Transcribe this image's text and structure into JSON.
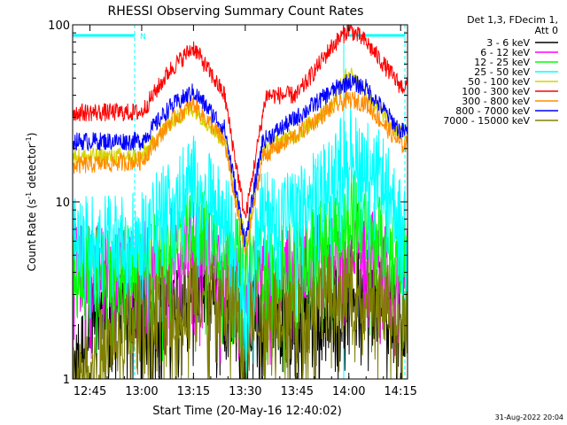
{
  "chart_data": {
    "type": "line",
    "title": "RHESSI Observing Summary Count Rates",
    "xlabel": "Start Time (20-May-16 12:40:02)",
    "ylabel": "Count Rate (s",
    "ylabel_sup": "-1",
    "ylabel_tail": " detector",
    "ylabel_end": ")",
    "x_unit": "minutes since 12:40:02",
    "xlim": [
      0,
      97
    ],
    "ylim": [
      1,
      100
    ],
    "yscale": "log",
    "x_ticks": [
      {
        "t": 5,
        "label": "12:45"
      },
      {
        "t": 20,
        "label": "13:00"
      },
      {
        "t": 35,
        "label": "13:15"
      },
      {
        "t": 50,
        "label": "13:30"
      },
      {
        "t": 65,
        "label": "13:45"
      },
      {
        "t": 80,
        "label": "14:00"
      },
      {
        "t": 95,
        "label": "14:15"
      }
    ],
    "y_ticks": [
      {
        "v": 1,
        "label": "1"
      },
      {
        "v": 10,
        "label": "10"
      },
      {
        "v": 100,
        "label": "100"
      }
    ],
    "legend_placement": "right",
    "legend_header": [
      "Det 1,3, FDecim 1,",
      "Att 0"
    ],
    "series": [
      {
        "name": "3 - 6 keV",
        "color": "#000000",
        "profile": "noise",
        "points": [
          [
            0,
            1
          ],
          [
            6,
            2.5
          ],
          [
            20,
            2.6
          ],
          [
            24,
            2.2
          ],
          [
            35,
            3.6
          ],
          [
            48,
            2.6
          ],
          [
            50,
            1.2
          ],
          [
            52,
            2.6
          ],
          [
            65,
            2.2
          ],
          [
            75,
            2.6
          ],
          [
            80,
            3.6
          ],
          [
            90,
            2.6
          ],
          [
            95,
            2.5
          ]
        ]
      },
      {
        "name": "6 - 12 keV",
        "color": "#ff00ff",
        "profile": "noise",
        "points": [
          [
            0,
            4.4
          ],
          [
            20,
            4.4
          ],
          [
            35,
            6.4
          ],
          [
            50,
            3.4
          ],
          [
            65,
            4.4
          ],
          [
            80,
            6.4
          ],
          [
            95,
            4.4
          ]
        ]
      },
      {
        "name": "12 - 25 keV",
        "color": "#00ff00",
        "profile": "noise",
        "points": [
          [
            0,
            4.4
          ],
          [
            20,
            4.4
          ],
          [
            35,
            8
          ],
          [
            48,
            5
          ],
          [
            50,
            4.6
          ],
          [
            65,
            4.4
          ],
          [
            80,
            9.5
          ],
          [
            95,
            5
          ]
        ]
      },
      {
        "name": "25 - 50 keV",
        "color": "#00ffff",
        "profile": "noise",
        "points": [
          [
            0,
            6.5
          ],
          [
            20,
            6.5
          ],
          [
            25,
            9
          ],
          [
            35,
            14
          ],
          [
            45,
            8
          ],
          [
            50,
            3
          ],
          [
            55,
            9
          ],
          [
            65,
            9
          ],
          [
            75,
            14
          ],
          [
            80,
            22
          ],
          [
            90,
            14
          ],
          [
            95,
            8
          ]
        ]
      },
      {
        "name": "50 - 100 keV",
        "color": "#d4d400",
        "profile": "smooth",
        "points": [
          [
            0,
            18
          ],
          [
            20,
            18
          ],
          [
            28,
            28
          ],
          [
            35,
            34
          ],
          [
            44,
            22
          ],
          [
            50,
            6
          ],
          [
            55,
            20
          ],
          [
            65,
            24
          ],
          [
            75,
            35
          ],
          [
            80,
            55
          ],
          [
            85,
            40
          ],
          [
            95,
            24
          ]
        ]
      },
      {
        "name": "100 - 300 keV",
        "color": "#ff0000",
        "profile": "smooth",
        "points": [
          [
            0,
            32
          ],
          [
            20,
            32
          ],
          [
            28,
            55
          ],
          [
            35,
            75
          ],
          [
            44,
            40
          ],
          [
            50,
            8
          ],
          [
            56,
            40
          ],
          [
            65,
            40
          ],
          [
            75,
            75
          ],
          [
            80,
            95
          ],
          [
            85,
            80
          ],
          [
            95,
            45
          ]
        ]
      },
      {
        "name": "300 - 800 keV",
        "color": "#ff8c00",
        "profile": "smooth",
        "points": [
          [
            0,
            16
          ],
          [
            20,
            17
          ],
          [
            28,
            28
          ],
          [
            35,
            36
          ],
          [
            44,
            22
          ],
          [
            50,
            5
          ],
          [
            55,
            18
          ],
          [
            65,
            24
          ],
          [
            75,
            34
          ],
          [
            80,
            38
          ],
          [
            85,
            36
          ],
          [
            95,
            21
          ]
        ]
      },
      {
        "name": "800 - 7000 keV",
        "color": "#0000ff",
        "profile": "smooth",
        "points": [
          [
            0,
            22
          ],
          [
            20,
            22
          ],
          [
            28,
            34
          ],
          [
            35,
            42
          ],
          [
            44,
            26
          ],
          [
            50,
            6
          ],
          [
            55,
            22
          ],
          [
            65,
            30
          ],
          [
            75,
            42
          ],
          [
            80,
            48
          ],
          [
            85,
            44
          ],
          [
            95,
            25
          ]
        ]
      },
      {
        "name": "7000 - 15000 keV",
        "color": "#808000",
        "profile": "noise",
        "points": [
          [
            0,
            1
          ],
          [
            20,
            2.5
          ],
          [
            30,
            2.6
          ],
          [
            35,
            3.3
          ],
          [
            48,
            2.6
          ],
          [
            50,
            1
          ],
          [
            52,
            2.6
          ],
          [
            65,
            2.6
          ],
          [
            80,
            3.3
          ],
          [
            95,
            2.6
          ]
        ]
      }
    ],
    "annotations": {
      "footer_date": "31-Aug-2022 20:04",
      "interval_marker": "N"
    }
  }
}
